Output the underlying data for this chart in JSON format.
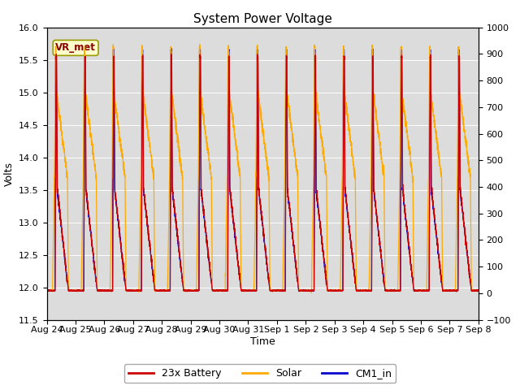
{
  "title": "System Power Voltage",
  "xlabel": "Time",
  "ylabel": "Volts",
  "ylim_left": [
    11.5,
    16.0
  ],
  "ylim_right": [
    -100,
    1000
  ],
  "yticks_left": [
    11.5,
    12.0,
    12.5,
    13.0,
    13.5,
    14.0,
    14.5,
    15.0,
    15.5,
    16.0
  ],
  "yticks_right": [
    -100,
    0,
    100,
    200,
    300,
    400,
    500,
    600,
    700,
    800,
    900,
    1000
  ],
  "xtick_labels": [
    "Aug 24",
    "Aug 25",
    "Aug 26",
    "Aug 27",
    "Aug 28",
    "Aug 29",
    "Aug 30",
    "Aug 31",
    "Sep 1",
    "Sep 2",
    "Sep 3",
    "Sep 4",
    "Sep 5",
    "Sep 6",
    "Sep 7",
    "Sep 8"
  ],
  "annotation_text": "VR_met",
  "legend_labels": [
    "23x Battery",
    "Solar",
    "CM1_in"
  ],
  "battery_color": "#cc0000",
  "solar_color": "#ffaa00",
  "cm1_color": "#0000cc",
  "background_color": "#ffffff",
  "plot_bg_color": "#dcdcdc",
  "n_days": 15,
  "title_fontsize": 11,
  "axis_fontsize": 9,
  "tick_fontsize": 8
}
